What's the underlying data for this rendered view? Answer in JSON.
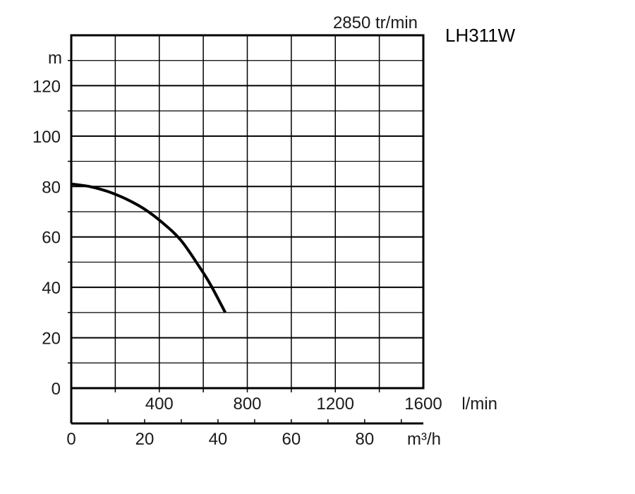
{
  "chart_data": {
    "type": "line",
    "title": "LH311W",
    "speed_label": "2850 tr/min",
    "ylabel": "m",
    "y_ticks": [
      0,
      20,
      40,
      60,
      80,
      100,
      120
    ],
    "ylim": [
      0,
      140
    ],
    "xlabel_lpm": "l/min",
    "x_ticks_lpm": [
      400,
      800,
      1200
    ],
    "x_last_tick_lpm": "1600",
    "xlim_lpm": [
      0,
      1600
    ],
    "xlabel_m3h": "m³/h",
    "x_ticks_m3h": [
      0,
      20,
      40,
      60,
      80
    ],
    "xlim_m3h": [
      0,
      96
    ],
    "grid": true,
    "series": [
      {
        "x": [
          0,
          5,
          10,
          15,
          20,
          25,
          30,
          35,
          38,
          42
        ],
        "y": [
          81,
          80,
          78,
          75,
          71,
          65.5,
          58.5,
          48,
          41,
          30
        ]
      }
    ]
  }
}
